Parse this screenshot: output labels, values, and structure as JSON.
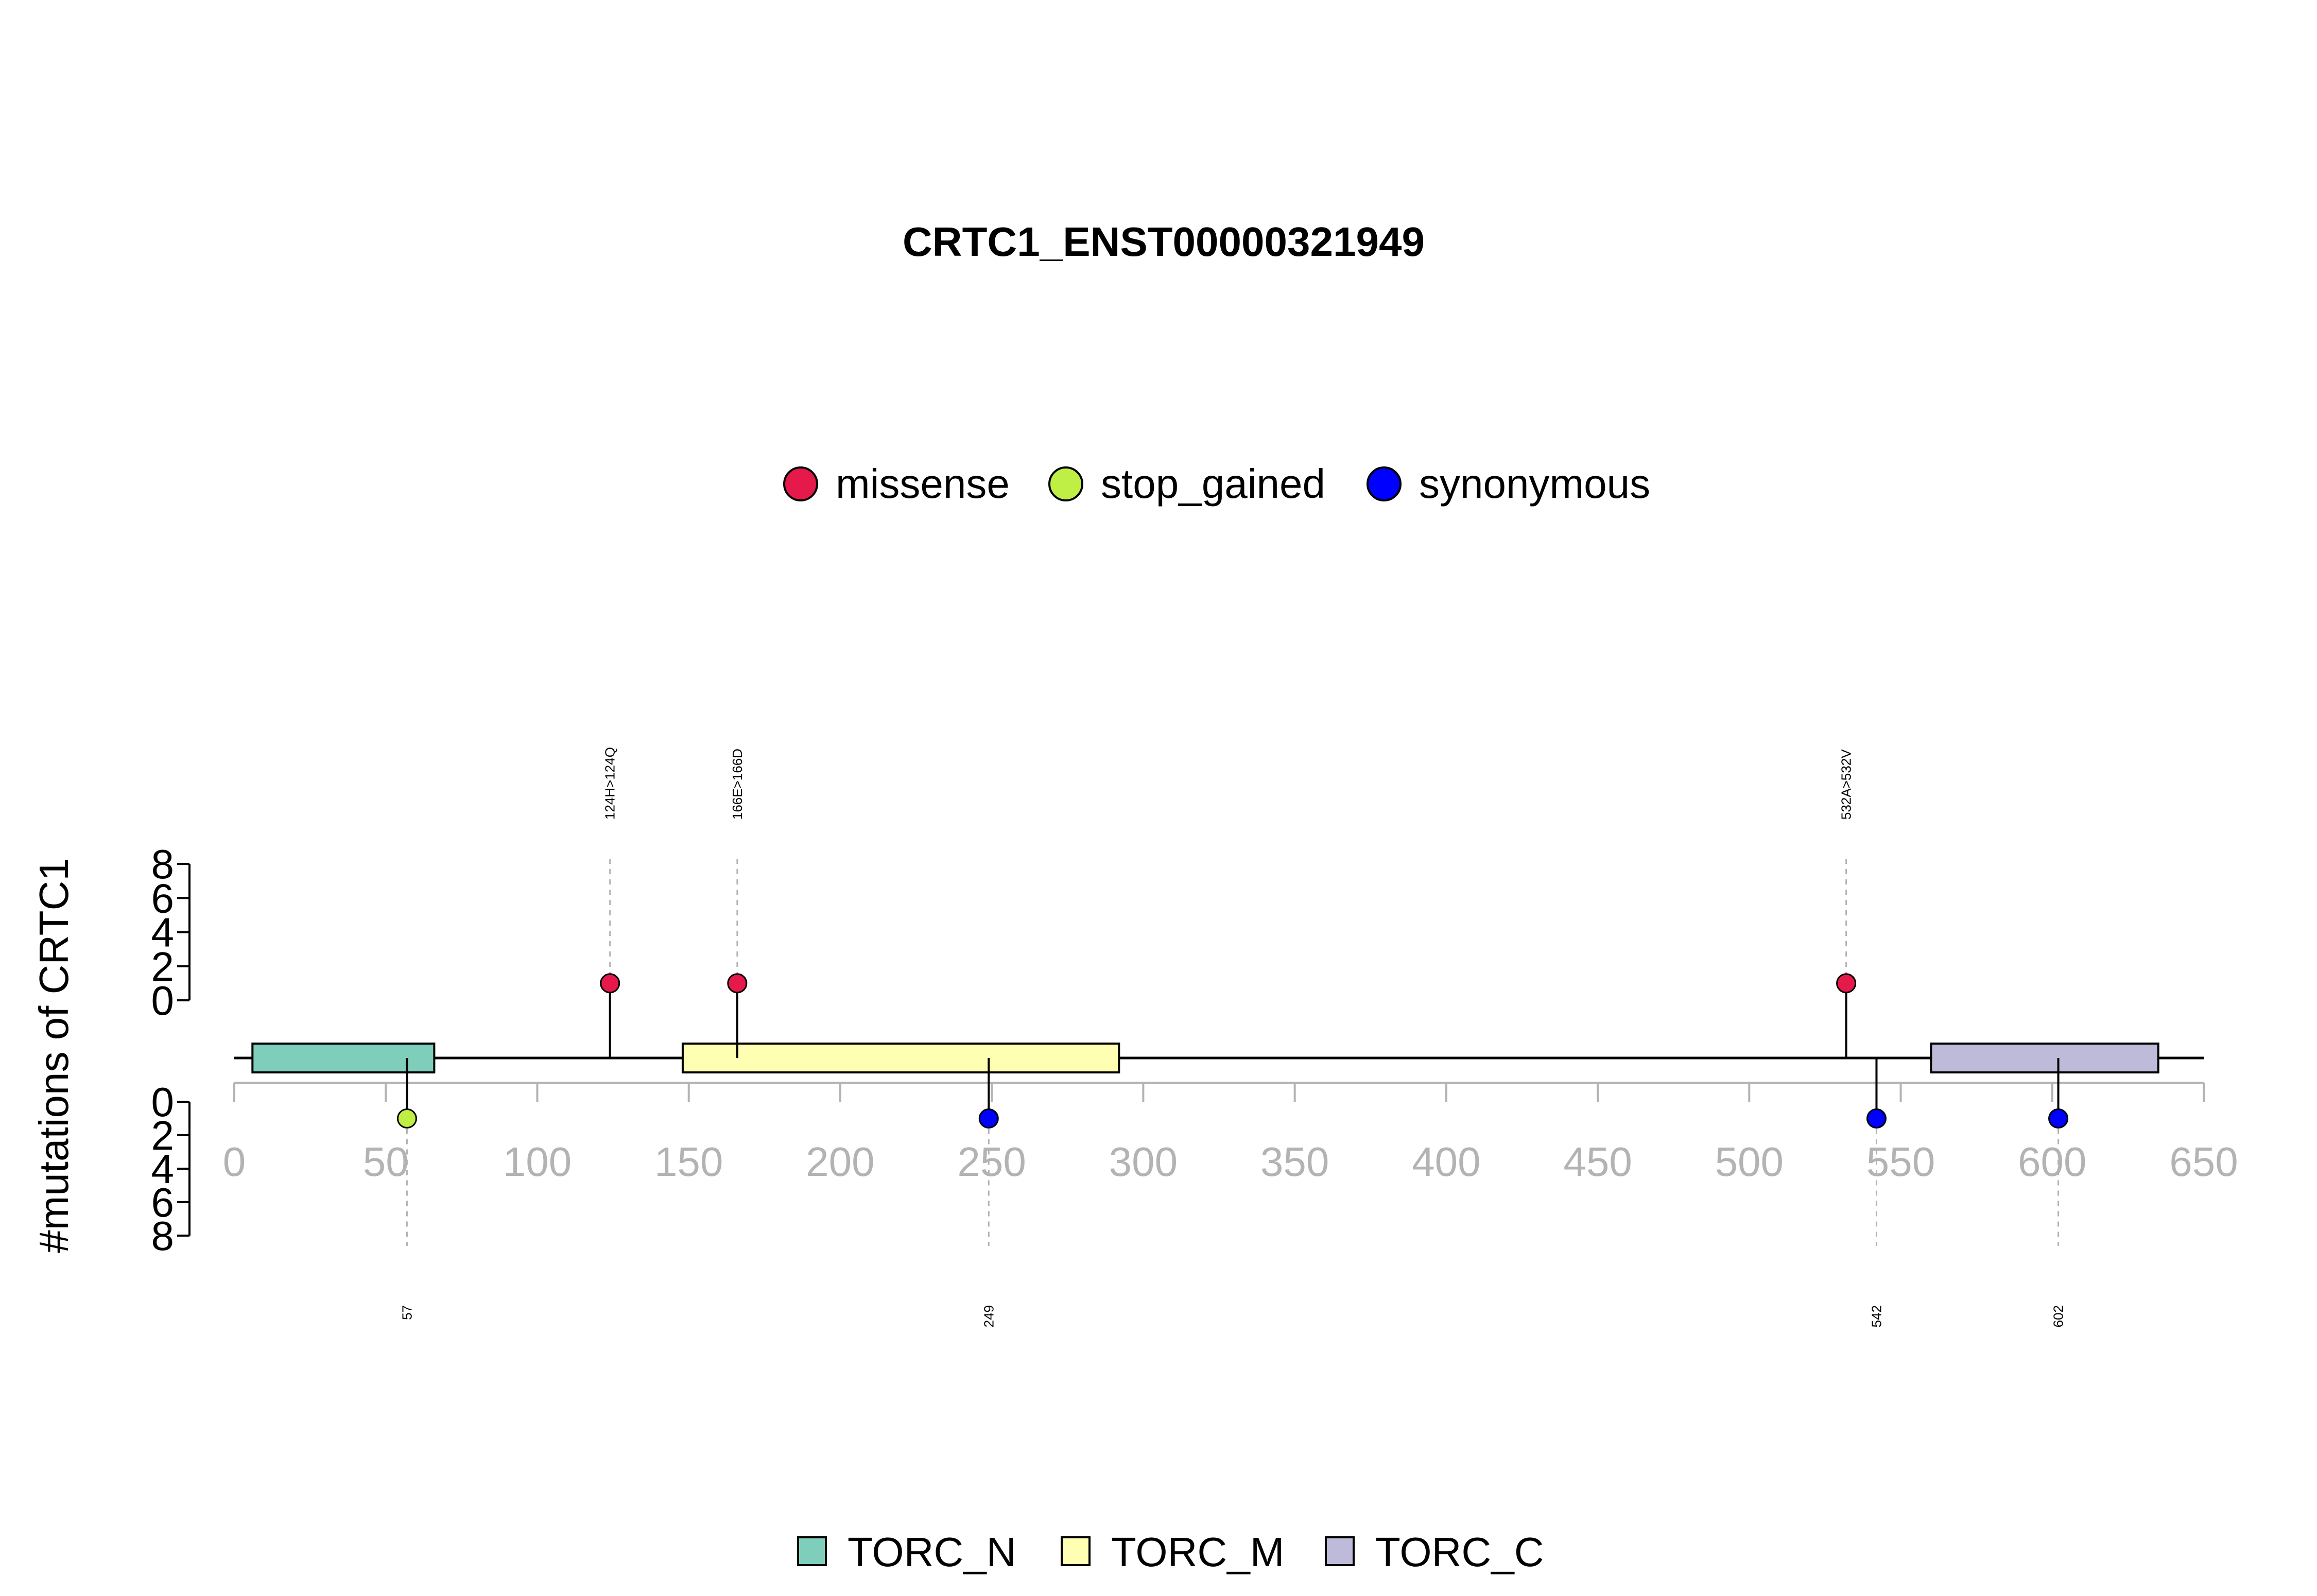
{
  "chart_data": {
    "type": "lollipop",
    "title": "CRTC1_ENST00000321949",
    "ylabel": "#mutations of CRTC1",
    "xlim": [
      0,
      650
    ],
    "x_ticks": [
      0,
      50,
      100,
      150,
      200,
      250,
      300,
      350,
      400,
      450,
      500,
      550,
      600,
      650
    ],
    "y_ticks_top": [
      0,
      2,
      4,
      6,
      8
    ],
    "y_ticks_bottom": [
      0,
      2,
      4,
      6,
      8
    ],
    "ylim": [
      0,
      8
    ],
    "mutation_legend": [
      {
        "name": "missense",
        "color": "#e6194b"
      },
      {
        "name": "stop_gained",
        "color": "#bfef45"
      },
      {
        "name": "synonymous",
        "color": "#0000ff"
      }
    ],
    "mutations_top": [
      {
        "position": 124,
        "label": "124H>124Q",
        "count": 1,
        "type": "missense"
      },
      {
        "position": 166,
        "label": "166E>166D",
        "count": 1,
        "type": "missense"
      },
      {
        "position": 532,
        "label": "532A>532V",
        "count": 1,
        "type": "missense"
      }
    ],
    "mutations_bottom": [
      {
        "position": 57,
        "label": "57",
        "count": 1,
        "type": "stop_gained"
      },
      {
        "position": 249,
        "label": "249",
        "count": 1,
        "type": "synonymous"
      },
      {
        "position": 542,
        "label": "542",
        "count": 1,
        "type": "synonymous"
      },
      {
        "position": 602,
        "label": "602",
        "count": 1,
        "type": "synonymous"
      }
    ],
    "domains": [
      {
        "name": "TORC_N",
        "start": 6,
        "end": 66,
        "color": "#7fcdbb"
      },
      {
        "name": "TORC_M",
        "start": 148,
        "end": 292,
        "color": "#ffffb3"
      },
      {
        "name": "TORC_C",
        "start": 560,
        "end": 635,
        "color": "#bebada"
      }
    ]
  }
}
